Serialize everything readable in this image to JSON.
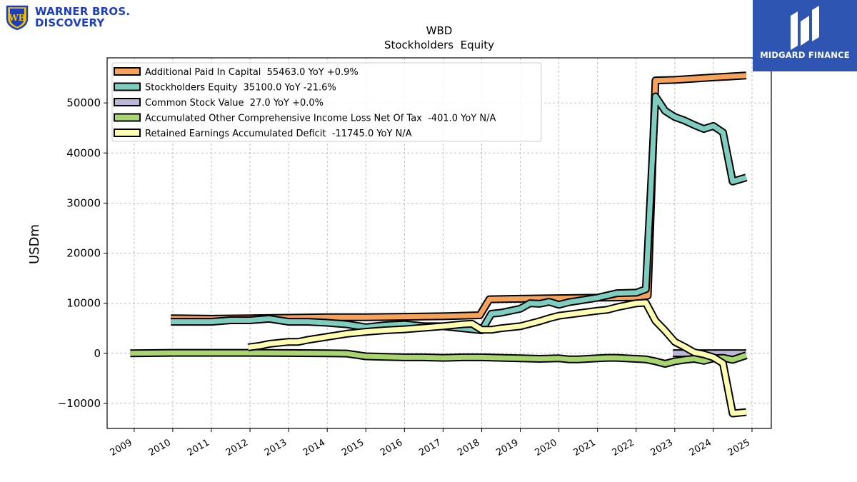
{
  "logos": {
    "left": {
      "line1": "WARNER BROS.",
      "line2": "DISCOVERY",
      "color": "#1d3fbf"
    },
    "right": {
      "text": "MIDGARD FINANCE",
      "background": "#2f55b3"
    }
  },
  "chart_data": {
    "type": "line",
    "title": "WBD",
    "subtitle": "Stockholders  Equity",
    "xlabel": "",
    "ylabel": "USDm",
    "xlim": [
      2008.3,
      2025.5
    ],
    "ylim": [
      -15000,
      59000
    ],
    "x_ticks": [
      "2009",
      "2010",
      "2011",
      "2012",
      "2013",
      "2014",
      "2015",
      "2016",
      "2017",
      "2018",
      "2019",
      "2020",
      "2021",
      "2022",
      "2023",
      "2024",
      "2025"
    ],
    "y_ticks": [
      -10000,
      0,
      10000,
      20000,
      30000,
      40000,
      50000
    ],
    "y_tick_labels": [
      "−10000",
      "0",
      "10000",
      "20000",
      "30000",
      "40000",
      "50000"
    ],
    "grid": true,
    "legend_position": "top-left",
    "series": [
      {
        "name": "Additional Paid In Capital  55463.0 YoY +0.9%",
        "color": "#f5a25d",
        "x": [
          2009.95,
          2011.0,
          2012.0,
          2013.0,
          2014.0,
          2015.0,
          2016.0,
          2017.0,
          2017.95,
          2018.2,
          2019.0,
          2020.0,
          2021.0,
          2022.0,
          2022.3,
          2022.5,
          2023.0,
          2024.0,
          2024.85
        ],
        "y": [
          7000,
          6900,
          7000,
          7100,
          7200,
          7200,
          7300,
          7400,
          7600,
          10800,
          10900,
          11000,
          11100,
          11200,
          11500,
          54500,
          54600,
          55100,
          55463
        ]
      },
      {
        "name": "Stockholders Equity  35100.0 YoY -21.6%",
        "color": "#7ecdbf",
        "x": [
          2009.95,
          2011.0,
          2011.5,
          2012.0,
          2012.5,
          2013.0,
          2013.5,
          2014.0,
          2014.5,
          2015.0,
          2015.5,
          2016.0,
          2016.5,
          2017.0,
          2017.5,
          2018.0,
          2018.25,
          2018.5,
          2019.0,
          2019.25,
          2019.5,
          2019.75,
          2020.0,
          2020.25,
          2020.5,
          2021.0,
          2021.5,
          2022.0,
          2022.25,
          2022.5,
          2022.75,
          2023.0,
          2023.25,
          2023.5,
          2023.75,
          2024.0,
          2024.25,
          2024.5,
          2024.85
        ],
        "y": [
          6300,
          6300,
          6600,
          6600,
          6900,
          6300,
          6300,
          6100,
          5800,
          5200,
          5600,
          5800,
          5400,
          5400,
          5000,
          4600,
          7900,
          8100,
          8900,
          10000,
          9900,
          10300,
          9700,
          10200,
          10500,
          11100,
          12000,
          12100,
          12800,
          51300,
          48400,
          47200,
          46500,
          45600,
          44800,
          45400,
          44100,
          34300,
          35100
        ]
      },
      {
        "name": "Common Stock Value  27.0 YoY +0.0%",
        "color": "#bcb6d9",
        "x": [
          2022.95,
          2023.25,
          2023.5,
          2023.75,
          2024.0,
          2024.25,
          2024.5,
          2024.85
        ],
        "y": [
          27,
          27,
          27,
          27,
          27,
          27,
          27,
          27
        ]
      },
      {
        "name": "Accumulated Other Comprehensive Income Loss Net Of Tax  -401.0 YoY N/A",
        "color": "#a8d56f",
        "x": [
          2008.9,
          2010.0,
          2011.0,
          2012.0,
          2013.0,
          2014.0,
          2014.5,
          2015.0,
          2015.5,
          2016.0,
          2016.5,
          2017.0,
          2017.5,
          2018.0,
          2018.5,
          2019.0,
          2019.5,
          2020.0,
          2020.25,
          2020.5,
          2021.0,
          2021.25,
          2021.5,
          2022.0,
          2022.25,
          2022.5,
          2022.75,
          2023.0,
          2023.25,
          2023.5,
          2023.75,
          2024.0,
          2024.25,
          2024.5,
          2024.85
        ],
        "y": [
          0,
          100,
          100,
          100,
          50,
          0,
          -50,
          -600,
          -700,
          -800,
          -800,
          -900,
          -800,
          -800,
          -900,
          -1000,
          -1100,
          -1000,
          -1200,
          -1200,
          -1000,
          -900,
          -900,
          -1100,
          -1200,
          -1600,
          -2100,
          -1600,
          -1300,
          -1100,
          -1500,
          -1000,
          -900,
          -1300,
          -401
        ]
      },
      {
        "name": "Retained Earnings Accumulated Deficit  -11745.0 YoY N/A",
        "color": "#fefeb3",
        "x": [
          2011.95,
          2012.25,
          2012.5,
          2013.0,
          2013.25,
          2013.5,
          2014.0,
          2014.5,
          2015.0,
          2015.5,
          2016.0,
          2016.5,
          2017.0,
          2017.5,
          2017.75,
          2018.0,
          2018.25,
          2018.5,
          2019.0,
          2019.5,
          2019.75,
          2020.0,
          2020.5,
          2021.0,
          2021.25,
          2021.5,
          2022.0,
          2022.25,
          2022.5,
          2022.75,
          2023.0,
          2023.25,
          2023.5,
          2023.75,
          2024.0,
          2024.25,
          2024.5,
          2024.85
        ],
        "y": [
          1200,
          1500,
          1900,
          2300,
          2300,
          2700,
          3300,
          3900,
          4300,
          4600,
          4800,
          5100,
          5400,
          5800,
          5900,
          4700,
          4700,
          5000,
          5400,
          6400,
          7000,
          7500,
          8000,
          8500,
          8700,
          9200,
          10000,
          10100,
          6500,
          4500,
          2300,
          1300,
          200,
          -200,
          -800,
          -2000,
          -12000,
          -11745
        ]
      }
    ]
  }
}
